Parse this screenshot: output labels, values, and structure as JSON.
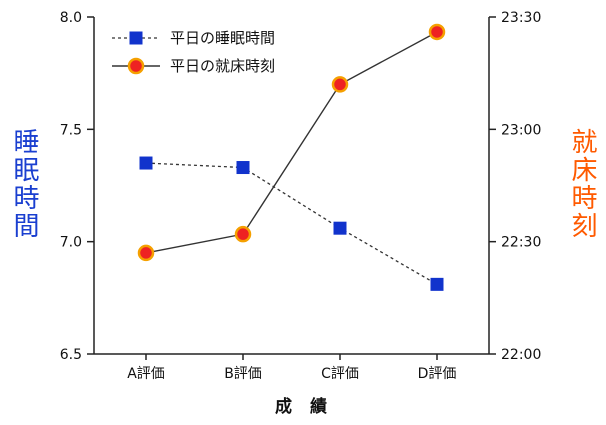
{
  "colors": {
    "sleep_series": "#1133cc",
    "bedtime_series_fill": "#ee2222",
    "bedtime_series_edge": "#f5a000",
    "left_label": "#1a3fd0",
    "right_label": "#ff5a00",
    "axis": "#222222"
  },
  "chart_data": {
    "type": "line",
    "categories": [
      "A評価",
      "B評価",
      "C評価",
      "D評価"
    ],
    "xlabel": "成 績",
    "y_left": {
      "label": "睡眠時間",
      "ylim": [
        6.5,
        8.0
      ],
      "ticks": [
        "6.5",
        "7.0",
        "7.5",
        "8.0"
      ]
    },
    "y_right": {
      "label": "就床時刻",
      "ylim": [
        "22:00",
        "23:30"
      ],
      "ticks": [
        "22:00",
        "22:30",
        "23:00",
        "23:30"
      ]
    },
    "series": [
      {
        "name": "平日の睡眠時間",
        "axis": "left",
        "line_style": "dashed",
        "marker": "square",
        "values": [
          7.35,
          7.33,
          7.06,
          6.81
        ]
      },
      {
        "name": "平日の就床時刻",
        "axis": "right",
        "line_style": "solid",
        "marker": "circle",
        "values": [
          "22:27",
          "22:32",
          "23:12",
          "23:26"
        ]
      }
    ],
    "legend_position": "top-left",
    "grid": false
  }
}
